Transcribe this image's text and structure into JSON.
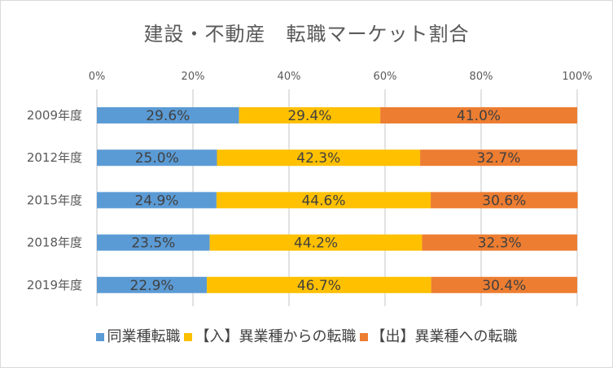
{
  "chart_data": {
    "type": "bar",
    "orientation": "horizontal",
    "stacked": "percent",
    "title": "建設・不動産　転職マーケット割合",
    "categories": [
      "2009年度",
      "2012年度",
      "2015年度",
      "2018年度",
      "2019年度"
    ],
    "series": [
      {
        "name": "同業種転職",
        "color": "#5b9bd5",
        "values": [
          29.6,
          25.0,
          24.9,
          23.5,
          22.9
        ],
        "labels": [
          "29.6%",
          "25.0%",
          "24.9%",
          "23.5%",
          "22.9%"
        ]
      },
      {
        "name": "【入】異業種からの転職",
        "color": "#ffc000",
        "values": [
          29.4,
          42.3,
          44.6,
          44.2,
          46.7
        ],
        "labels": [
          "29.4%",
          "42.3%",
          "44.6%",
          "44.2%",
          "46.7%"
        ]
      },
      {
        "name": "【出】異業種への転職",
        "color": "#ed7d31",
        "values": [
          41.0,
          32.7,
          30.6,
          32.3,
          30.4
        ],
        "labels": [
          "41.0%",
          "32.7%",
          "30.6%",
          "32.3%",
          "30.4%"
        ]
      }
    ],
    "xlim": [
      0,
      100
    ],
    "xticks": [
      "0%",
      "20%",
      "40%",
      "60%",
      "80%",
      "100%"
    ],
    "xlabel": "",
    "ylabel": "",
    "grid": true,
    "legend_position": "bottom"
  }
}
